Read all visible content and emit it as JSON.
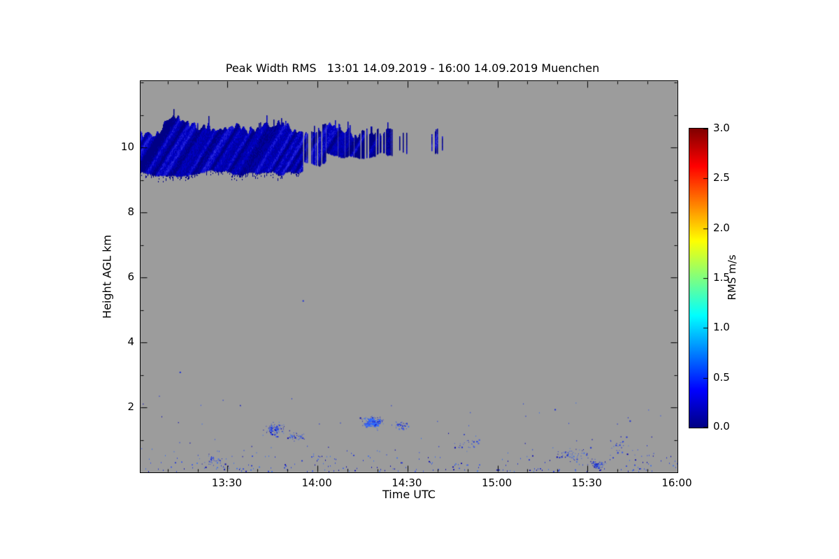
{
  "chart_data": {
    "type": "heatmap",
    "title": "Peak Width RMS   13:01 14.09.2019 - 16:00 14.09.2019 Muenchen",
    "xlabel": "Time UTC",
    "ylabel": "Height AGL km",
    "x_start_label": "13:01",
    "x_end_label": "16:00",
    "x_range_minutes": [
      781,
      960
    ],
    "x_ticks": [
      {
        "minute": 810,
        "label": "13:30"
      },
      {
        "minute": 840,
        "label": "14:00"
      },
      {
        "minute": 870,
        "label": "14:30"
      },
      {
        "minute": 900,
        "label": "15:00"
      },
      {
        "minute": 930,
        "label": "15:30"
      },
      {
        "minute": 960,
        "label": "16:00"
      }
    ],
    "x_minor_step_minutes": 10,
    "y_range_km": [
      0,
      12.05
    ],
    "y_ticks": [
      {
        "km": 2,
        "label": "2"
      },
      {
        "km": 4,
        "label": "4"
      },
      {
        "km": 6,
        "label": "6"
      },
      {
        "km": 8,
        "label": "8"
      },
      {
        "km": 10,
        "label": "10"
      }
    ],
    "y_minor_step_km": 1,
    "background_color": "#9c9c9c",
    "colorbar": {
      "label": "RMS m/s",
      "range": [
        0.0,
        3.0
      ],
      "ticks": [
        "0.0",
        "0.5",
        "1.0",
        "1.5",
        "2.0",
        "2.5",
        "3.0"
      ],
      "colormap": "jet",
      "stops": [
        {
          "pos": 0.0,
          "color": "#000083"
        },
        {
          "pos": 0.125,
          "color": "#0000ff"
        },
        {
          "pos": 0.375,
          "color": "#00ffff"
        },
        {
          "pos": 0.625,
          "color": "#ffff00"
        },
        {
          "pos": 0.875,
          "color": "#ff0000"
        },
        {
          "pos": 1.0,
          "color": "#800000"
        }
      ]
    },
    "features": {
      "cloud_band": {
        "rms_value_range_ms": [
          0.0,
          0.5
        ],
        "palette": [
          "#000085",
          "#0000a4",
          "#0000c0",
          "#1414d2",
          "#2828e0"
        ],
        "segments": [
          {
            "t0": 781,
            "t1": 835,
            "base_km": 9.25,
            "top_km": 10.65,
            "density": 1.0
          },
          {
            "t0": 835,
            "t1": 843,
            "base_km": 9.55,
            "top_km": 10.55,
            "density": 0.45
          },
          {
            "t0": 843,
            "t1": 866,
            "base_km": 9.8,
            "top_km": 10.55,
            "density": 0.8
          },
          {
            "t0": 866,
            "t1": 874,
            "base_km": 9.9,
            "top_km": 10.4,
            "density": 0.32
          },
          {
            "t0": 874,
            "t1": 882,
            "base_km": 9.95,
            "top_km": 10.3,
            "density": 0.24
          }
        ]
      },
      "isolated_specks": [
        {
          "t": 835,
          "km": 5.3
        },
        {
          "t": 794,
          "km": 3.1
        },
        {
          "t": 919,
          "km": 1.95
        },
        {
          "t": 944,
          "km": 1.6
        }
      ],
      "boundary_layer": {
        "max_km": 2.45,
        "rms_value_range_ms": [
          0.2,
          1.0
        ],
        "palette": [
          "#0000b4",
          "#1a2fd6",
          "#2744e0",
          "#3a57e8",
          "#3f6fe8"
        ],
        "bright_color": "#2f6bff",
        "ground_density": 0.28,
        "scatter_count": 80,
        "clusters": [
          {
            "t": 826,
            "km": 1.35,
            "ts": 5,
            "ks": 0.28,
            "n": 90
          },
          {
            "t": 833,
            "km": 1.1,
            "ts": 4,
            "ks": 0.2,
            "n": 40
          },
          {
            "t": 858,
            "km": 1.55,
            "ts": 5,
            "ks": 0.22,
            "n": 160,
            "bright": true
          },
          {
            "t": 868,
            "km": 1.45,
            "ts": 3,
            "ks": 0.18,
            "n": 40
          },
          {
            "t": 805,
            "km": 0.35,
            "ts": 6,
            "ks": 0.25,
            "n": 30
          },
          {
            "t": 890,
            "km": 0.9,
            "ts": 10,
            "ks": 0.35,
            "n": 25
          },
          {
            "t": 925,
            "km": 0.55,
            "ts": 8,
            "ks": 0.3,
            "n": 50
          },
          {
            "t": 933,
            "km": 0.25,
            "ts": 4,
            "ks": 0.12,
            "n": 60
          },
          {
            "t": 941,
            "km": 0.8,
            "ts": 6,
            "ks": 0.4,
            "n": 25
          }
        ]
      }
    }
  }
}
